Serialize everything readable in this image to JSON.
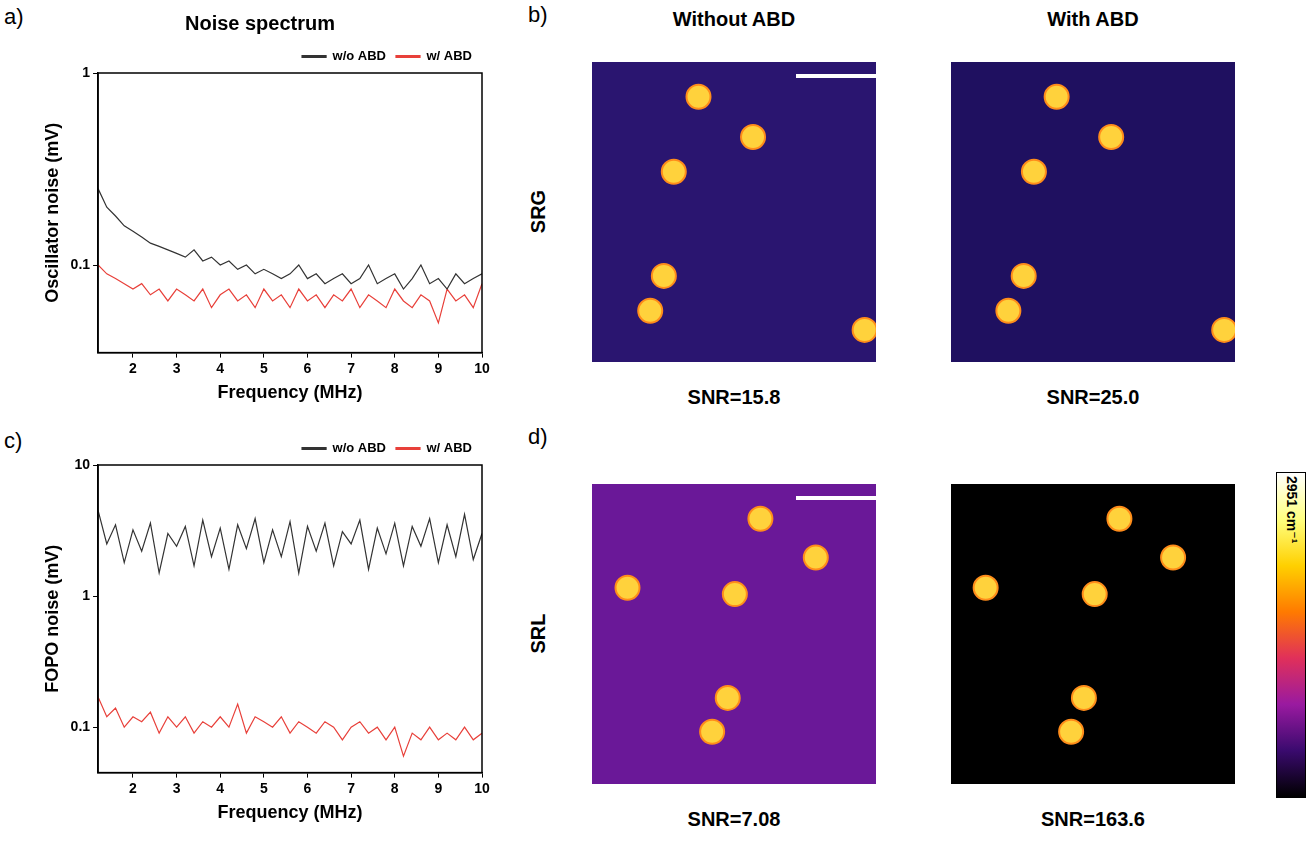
{
  "chart_data": [
    {
      "type": "line",
      "panel_label": "a)",
      "title": "Noise spectrum",
      "x_label": "Frequency (MHz)",
      "y_label": "Oscillator noise (mV)",
      "log": "y",
      "grid": false,
      "legend": "top right",
      "xlim": [
        1.2,
        10
      ],
      "xticks": [
        2,
        3,
        4,
        5,
        6,
        7,
        8,
        9,
        10
      ],
      "ylim": [
        0.035,
        1
      ],
      "yticks": [
        0.1,
        1
      ],
      "x": [
        1.2,
        1.4,
        1.6,
        1.8,
        2.0,
        2.2,
        2.4,
        2.6,
        2.8,
        3.0,
        3.2,
        3.4,
        3.6,
        3.8,
        4.0,
        4.2,
        4.4,
        4.6,
        4.8,
        5.0,
        5.2,
        5.4,
        5.6,
        5.8,
        6.0,
        6.2,
        6.4,
        6.6,
        6.8,
        7.0,
        7.2,
        7.4,
        7.6,
        7.8,
        8.0,
        8.2,
        8.4,
        8.6,
        8.8,
        9.0,
        9.2,
        9.4,
        9.6,
        9.8,
        10.0
      ],
      "series": [
        {
          "name": "w/o ABD",
          "color": "#333333",
          "values": [
            0.25,
            0.2,
            0.18,
            0.16,
            0.15,
            0.14,
            0.13,
            0.125,
            0.12,
            0.115,
            0.11,
            0.12,
            0.105,
            0.11,
            0.1,
            0.105,
            0.095,
            0.1,
            0.09,
            0.095,
            0.09,
            0.085,
            0.09,
            0.1,
            0.085,
            0.09,
            0.08,
            0.085,
            0.09,
            0.08,
            0.085,
            0.1,
            0.08,
            0.085,
            0.09,
            0.075,
            0.085,
            0.1,
            0.08,
            0.085,
            0.075,
            0.09,
            0.08,
            0.085,
            0.09
          ]
        },
        {
          "name": "w/ ABD",
          "color": "#e8403a",
          "values": [
            0.1,
            0.09,
            0.085,
            0.08,
            0.075,
            0.08,
            0.07,
            0.075,
            0.065,
            0.075,
            0.07,
            0.065,
            0.075,
            0.06,
            0.07,
            0.075,
            0.065,
            0.07,
            0.06,
            0.075,
            0.065,
            0.07,
            0.06,
            0.075,
            0.065,
            0.07,
            0.06,
            0.07,
            0.065,
            0.075,
            0.06,
            0.07,
            0.065,
            0.06,
            0.075,
            0.065,
            0.06,
            0.07,
            0.065,
            0.05,
            0.075,
            0.065,
            0.07,
            0.06,
            0.08
          ]
        }
      ]
    },
    {
      "type": "line",
      "panel_label": "c)",
      "x_label": "Frequency (MHz)",
      "y_label": "FOPO noise (mV)",
      "log": "y",
      "grid": false,
      "legend": "top right",
      "xlim": [
        1.2,
        10
      ],
      "xticks": [
        2,
        3,
        4,
        5,
        6,
        7,
        8,
        9,
        10
      ],
      "ylim": [
        0.045,
        10
      ],
      "yticks": [
        0.1,
        1,
        10
      ],
      "x": [
        1.2,
        1.4,
        1.6,
        1.8,
        2.0,
        2.2,
        2.4,
        2.6,
        2.8,
        3.0,
        3.2,
        3.4,
        3.6,
        3.8,
        4.0,
        4.2,
        4.4,
        4.6,
        4.8,
        5.0,
        5.2,
        5.4,
        5.6,
        5.8,
        6.0,
        6.2,
        6.4,
        6.6,
        6.8,
        7.0,
        7.2,
        7.4,
        7.6,
        7.8,
        8.0,
        8.2,
        8.4,
        8.6,
        8.8,
        9.0,
        9.2,
        9.4,
        9.6,
        9.8,
        10.0
      ],
      "series": [
        {
          "name": "w/o ABD",
          "color": "#333333",
          "values": [
            4.5,
            2.5,
            3.5,
            1.8,
            3.2,
            2.2,
            3.6,
            1.5,
            3.0,
            2.4,
            3.4,
            1.7,
            3.8,
            2.0,
            3.3,
            1.6,
            3.5,
            2.3,
            3.9,
            1.8,
            3.2,
            2.0,
            3.7,
            1.5,
            3.4,
            2.2,
            3.6,
            1.7,
            3.1,
            2.5,
            3.8,
            1.6,
            3.3,
            2.1,
            3.6,
            1.7,
            3.4,
            2.4,
            3.9,
            1.8,
            3.5,
            2.0,
            4.2,
            1.9,
            3.0
          ]
        },
        {
          "name": "w/ ABD",
          "color": "#e8403a",
          "values": [
            0.17,
            0.12,
            0.14,
            0.1,
            0.12,
            0.11,
            0.13,
            0.09,
            0.12,
            0.1,
            0.12,
            0.09,
            0.11,
            0.1,
            0.12,
            0.1,
            0.15,
            0.09,
            0.12,
            0.11,
            0.1,
            0.12,
            0.09,
            0.11,
            0.1,
            0.09,
            0.11,
            0.1,
            0.08,
            0.1,
            0.11,
            0.09,
            0.1,
            0.08,
            0.1,
            0.06,
            0.09,
            0.08,
            0.1,
            0.08,
            0.09,
            0.08,
            0.1,
            0.08,
            0.09
          ]
        }
      ]
    },
    {
      "type": "scatter",
      "panel_label": "b)",
      "title": "Without ABD",
      "row_label": "SRG",
      "caption": "SNR=15.8",
      "xlim": [
        0,
        100
      ],
      "ylim": [
        0,
        100
      ],
      "tick_labels": false,
      "grid": false,
      "color": "#ffd23c",
      "x": [
        37.5,
        56.7,
        28.8,
        25.3,
        20.5,
        96.0
      ],
      "y": [
        88.4,
        75.0,
        63.4,
        28.7,
        17.1,
        10.7
      ]
    },
    {
      "type": "scatter",
      "title": "With ABD",
      "caption": "SNR=25.0",
      "xlim": [
        0,
        100
      ],
      "ylim": [
        0,
        100
      ],
      "tick_labels": false,
      "grid": false,
      "color": "#ffd23c",
      "x": [
        37.2,
        56.4,
        29.2,
        25.6,
        20.2,
        96.2
      ],
      "y": [
        88.4,
        75.0,
        63.4,
        28.7,
        17.1,
        10.7
      ]
    },
    {
      "type": "scatter",
      "panel_label": "d)",
      "row_label": "SRL",
      "caption": "SNR=7.08",
      "xlim": [
        0,
        100
      ],
      "ylim": [
        0,
        100
      ],
      "tick_labels": false,
      "grid": false,
      "color": "#ffd23c",
      "x": [
        59.3,
        78.8,
        12.5,
        50.3,
        47.8,
        42.3
      ],
      "y": [
        88.4,
        75.5,
        65.4,
        63.3,
        28.7,
        17.4
      ]
    },
    {
      "type": "scatter",
      "caption": "SNR=163.6",
      "xlim": [
        0,
        100
      ],
      "ylim": [
        0,
        100
      ],
      "tick_labels": false,
      "grid": false,
      "color": "#ffd23c",
      "x": [
        59.3,
        78.2,
        12.2,
        50.6,
        46.8,
        42.3
      ],
      "y": [
        88.4,
        75.5,
        65.4,
        63.3,
        28.7,
        17.4
      ]
    },
    {
      "type": "colorbar",
      "label": "2951 cm⁻¹",
      "colors": [
        "#ffffff",
        "#ffff80",
        "#ffd000",
        "#ff7a00",
        "#e0305a",
        "#9a1aa0",
        "#3a0a6e",
        "#000000"
      ]
    }
  ]
}
